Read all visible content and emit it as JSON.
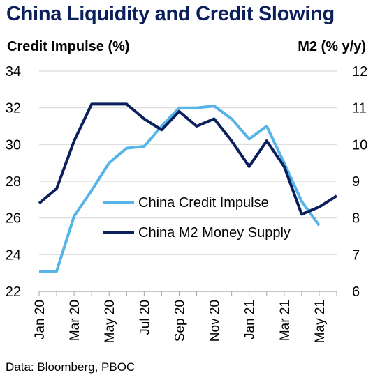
{
  "header": {
    "title": "China Liquidity and Credit Slowing",
    "left_axis_title": "Credit Impulse (%)",
    "right_axis_title": "M2 (% y/y)"
  },
  "footer": {
    "source": "Data: Bloomberg, PBOC"
  },
  "colors": {
    "title": "#0b1f5c",
    "credit_impulse": "#56b4e9",
    "m2": "#0b1f5c",
    "grid": "#d9d9d9"
  },
  "chart_data": {
    "type": "line",
    "x": [
      "Jan 20",
      "Feb 20",
      "Mar 20",
      "Apr 20",
      "May 20",
      "Jun 20",
      "Jul 20",
      "Aug 20",
      "Sep 20",
      "Oct 20",
      "Nov 20",
      "Dec 20",
      "Jan 21",
      "Feb 21",
      "Mar 21",
      "Apr 21",
      "May 21",
      "Jun 21"
    ],
    "x_tick_labels": [
      "Jan 20",
      "Mar 20",
      "May 20",
      "Jul 20",
      "Sep 20",
      "Nov 20",
      "Jan 21",
      "Mar 21",
      "May 21"
    ],
    "xlabel": "",
    "y_left": {
      "label": "Credit Impulse (%)",
      "lim": [
        22,
        34
      ],
      "ticks": [
        22,
        24,
        26,
        28,
        30,
        32,
        34
      ]
    },
    "y_right": {
      "label": "M2 (% y/y)",
      "lim": [
        6,
        12
      ],
      "ticks": [
        6,
        7,
        8,
        9,
        10,
        11,
        12
      ]
    },
    "grid": true,
    "legend_position": "center-right",
    "series": [
      {
        "name": "China Credit Impulse",
        "axis": "left",
        "values": [
          23.1,
          23.1,
          26.1,
          27.5,
          29.0,
          29.8,
          29.9,
          31.0,
          32.0,
          32.0,
          32.1,
          31.4,
          30.3,
          31.0,
          29.0,
          26.9,
          25.6,
          null
        ]
      },
      {
        "name": "China M2 Money Supply",
        "axis": "right",
        "values": [
          8.4,
          8.8,
          10.1,
          11.1,
          11.1,
          11.1,
          10.7,
          10.4,
          10.9,
          10.5,
          10.7,
          10.1,
          9.4,
          10.1,
          9.4,
          8.1,
          8.3,
          8.6
        ]
      }
    ]
  }
}
